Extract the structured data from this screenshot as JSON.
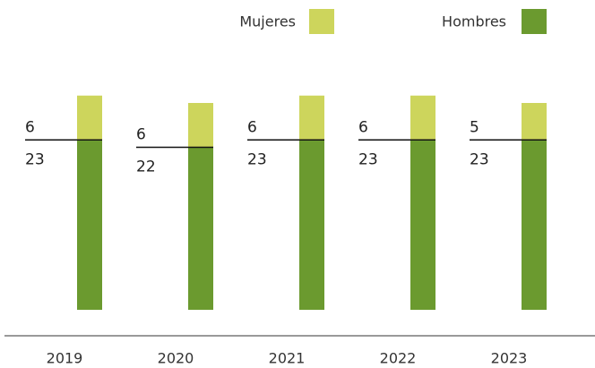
{
  "chart_data": {
    "type": "stacked-bar",
    "categories": [
      "2019",
      "2020",
      "2021",
      "2022",
      "2023"
    ],
    "series": [
      {
        "name": "Hombres",
        "color": "#6b9a2f",
        "values": [
          23,
          22,
          23,
          23,
          23
        ]
      },
      {
        "name": "Mujeres",
        "color": "#cdd55c",
        "values": [
          6,
          6,
          6,
          6,
          5
        ]
      }
    ]
  }
}
